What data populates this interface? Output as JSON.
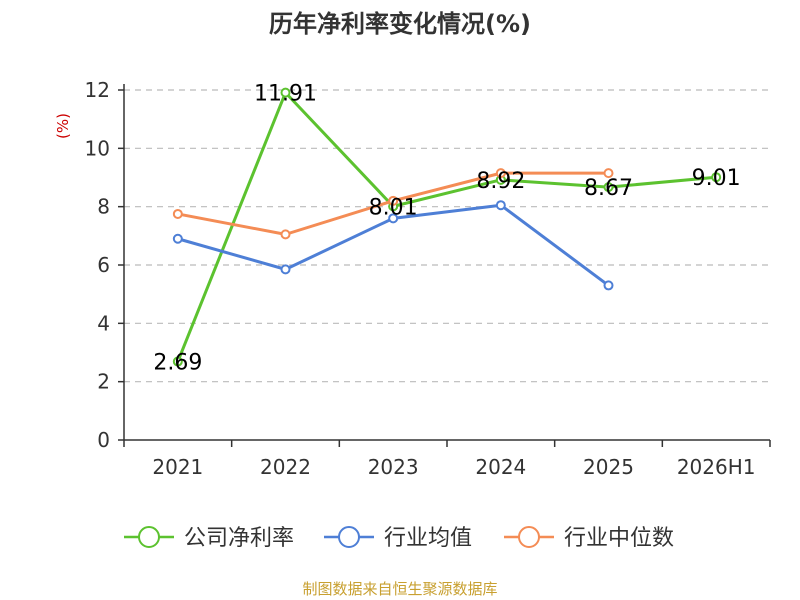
{
  "chart_data": {
    "type": "line",
    "title": "历年净利率变化情况(%)",
    "unit_label": "(%)",
    "categories": [
      "2021",
      "2022",
      "2023",
      "2024",
      "2025",
      "2026H1"
    ],
    "y_ticks": [
      "0",
      "2",
      "4",
      "6",
      "8",
      "10",
      "12"
    ],
    "ylim": [
      0,
      12
    ],
    "grid": true,
    "legend_position": "bottom",
    "series": [
      {
        "name": "公司净利率",
        "color": "#5cc22f",
        "values": [
          2.69,
          11.91,
          8.01,
          8.92,
          8.67,
          9.01
        ],
        "labels": [
          "2.69",
          "11.91",
          "8.01",
          "8.92",
          "8.67",
          "9.01"
        ]
      },
      {
        "name": "行业均值",
        "color": "#4e7fd6",
        "values": [
          6.9,
          5.85,
          7.6,
          8.05,
          5.3,
          null
        ]
      },
      {
        "name": "行业中位数",
        "color": "#f48c55",
        "values": [
          7.75,
          7.05,
          8.2,
          9.15,
          9.15,
          null
        ]
      }
    ],
    "source": "制图数据来自恒生聚源数据库"
  }
}
